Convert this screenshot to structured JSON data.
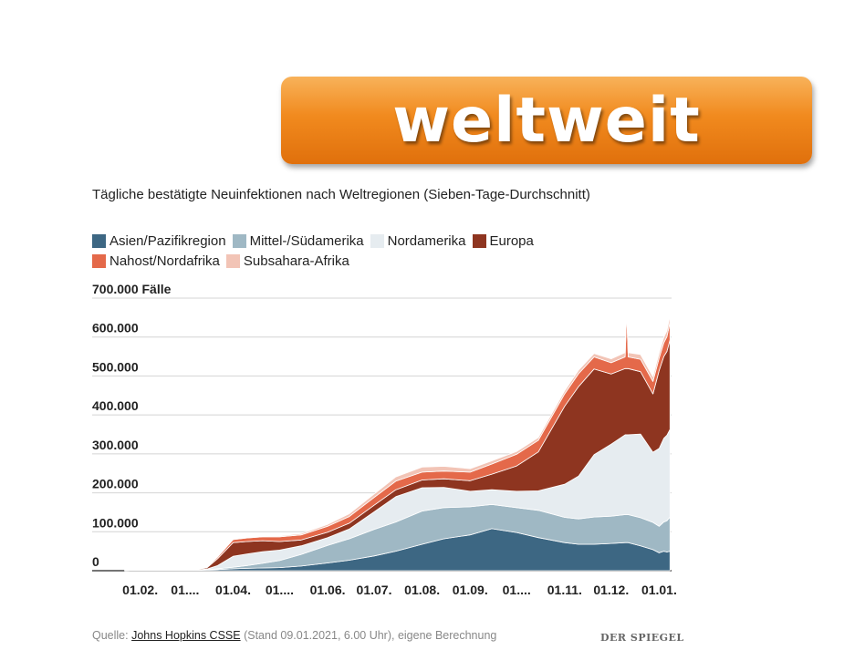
{
  "banner": {
    "title": "weltweit"
  },
  "chart_data": {
    "type": "area",
    "stacked": true,
    "title": "Tägliche bestätigte Neuinfektionen nach Weltregionen (Sieben-Tage-Durchschnitt)",
    "ylabel": "",
    "ylim": [
      0,
      700000
    ],
    "y_ticks": [
      {
        "value": 0,
        "label": "0"
      },
      {
        "value": 100000,
        "label": "100.000"
      },
      {
        "value": 200000,
        "label": "200.000"
      },
      {
        "value": 300000,
        "label": "300.000"
      },
      {
        "value": 400000,
        "label": "400.000"
      },
      {
        "value": 500000,
        "label": "500.000"
      },
      {
        "value": 600000,
        "label": "600.000"
      },
      {
        "value": 700000,
        "label": "700.000 Fälle"
      }
    ],
    "x_ticks": [
      {
        "date": "2020-02-01",
        "label": "01.02."
      },
      {
        "date": "2020-03-01",
        "label": "01...."
      },
      {
        "date": "2020-04-01",
        "label": "01.04."
      },
      {
        "date": "2020-05-01",
        "label": "01...."
      },
      {
        "date": "2020-06-01",
        "label": "01.06."
      },
      {
        "date": "2020-07-01",
        "label": "01.07."
      },
      {
        "date": "2020-08-01",
        "label": "01.08."
      },
      {
        "date": "2020-09-01",
        "label": "01.09."
      },
      {
        "date": "2020-10-01",
        "label": "01...."
      },
      {
        "date": "2020-11-01",
        "label": "01.11."
      },
      {
        "date": "2020-12-01",
        "label": "01.12."
      },
      {
        "date": "2021-01-01",
        "label": "01.01."
      }
    ],
    "xlim": [
      "2020-01-01",
      "2021-01-09"
    ],
    "x": [
      "2020-01-22",
      "2020-02-01",
      "2020-02-15",
      "2020-03-01",
      "2020-03-15",
      "2020-03-22",
      "2020-04-01",
      "2020-04-10",
      "2020-04-20",
      "2020-05-01",
      "2020-05-15",
      "2020-06-01",
      "2020-06-15",
      "2020-07-01",
      "2020-07-15",
      "2020-08-01",
      "2020-08-15",
      "2020-09-01",
      "2020-09-15",
      "2020-10-01",
      "2020-10-15",
      "2020-11-01",
      "2020-11-10",
      "2020-11-20",
      "2020-12-01",
      "2020-12-10",
      "2020-12-11",
      "2020-12-12",
      "2020-12-20",
      "2020-12-28",
      "2021-01-01",
      "2021-01-04",
      "2021-01-06",
      "2021-01-08"
    ],
    "series": [
      {
        "name": "Asien/Pazifikregion",
        "color": "#3d6783",
        "values": [
          500,
          2000,
          1500,
          1000,
          2000,
          3000,
          5000,
          6000,
          7000,
          8000,
          12000,
          20000,
          27000,
          38000,
          50000,
          68000,
          82000,
          92000,
          108000,
          98000,
          85000,
          72000,
          68000,
          68000,
          70000,
          72000,
          72000,
          72000,
          64000,
          54000,
          46000,
          50000,
          48000,
          50000
        ]
      },
      {
        "name": "Mittel-/Südamerika",
        "color": "#9fb8c4",
        "values": [
          0,
          0,
          0,
          0,
          500,
          2000,
          4000,
          7000,
          12000,
          18000,
          30000,
          45000,
          55000,
          68000,
          75000,
          85000,
          80000,
          72000,
          62000,
          64000,
          70000,
          65000,
          65000,
          70000,
          70000,
          72000,
          72000,
          72000,
          72000,
          70000,
          68000,
          75000,
          80000,
          88000
        ]
      },
      {
        "name": "Nordamerika",
        "color": "#e6ecf0",
        "values": [
          0,
          0,
          0,
          0,
          1500,
          8000,
          28000,
          30000,
          30000,
          27000,
          22000,
          20000,
          25000,
          45000,
          65000,
          60000,
          52000,
          40000,
          38000,
          42000,
          50000,
          85000,
          110000,
          160000,
          185000,
          205000,
          205000,
          205000,
          215000,
          180000,
          200000,
          215000,
          220000,
          225000
        ]
      },
      {
        "name": "Europa",
        "color": "#8e3520",
        "values": [
          0,
          0,
          0,
          0,
          3000,
          18000,
          35000,
          32000,
          28000,
          22000,
          15000,
          14000,
          15000,
          17000,
          18000,
          20000,
          22000,
          27000,
          40000,
          65000,
          100000,
          200000,
          230000,
          220000,
          180000,
          170000,
          170000,
          170000,
          160000,
          150000,
          200000,
          210000,
          215000,
          230000
        ]
      },
      {
        "name": "Nahost/Nordafrika",
        "color": "#e4694a",
        "values": [
          0,
          0,
          0,
          0,
          1500,
          4000,
          8000,
          9000,
          10000,
          12000,
          13000,
          15000,
          17000,
          20000,
          22000,
          20000,
          20000,
          22000,
          26000,
          30000,
          30000,
          32000,
          33000,
          31000,
          29000,
          30000,
          145000,
          30000,
          32000,
          32000,
          32000,
          35000,
          38000,
          45000
        ]
      },
      {
        "name": "Subsahara-Afrika",
        "color": "#f2c4b6",
        "values": [
          0,
          0,
          0,
          0,
          200,
          500,
          1000,
          1500,
          2000,
          2500,
          3500,
          5000,
          7000,
          9000,
          11000,
          13000,
          12000,
          9000,
          8000,
          7000,
          7000,
          8000,
          9000,
          9000,
          10000,
          11000,
          11000,
          11000,
          12000,
          12000,
          13000,
          14000,
          15000,
          17000
        ]
      }
    ],
    "source": {
      "prefix": "Quelle: ",
      "link": "Johns Hopkins CSSE",
      "suffix": " (Stand 09.01.2021, 6.00 Uhr), eigene Berechnung"
    },
    "publisher": "DER SPIEGEL"
  }
}
